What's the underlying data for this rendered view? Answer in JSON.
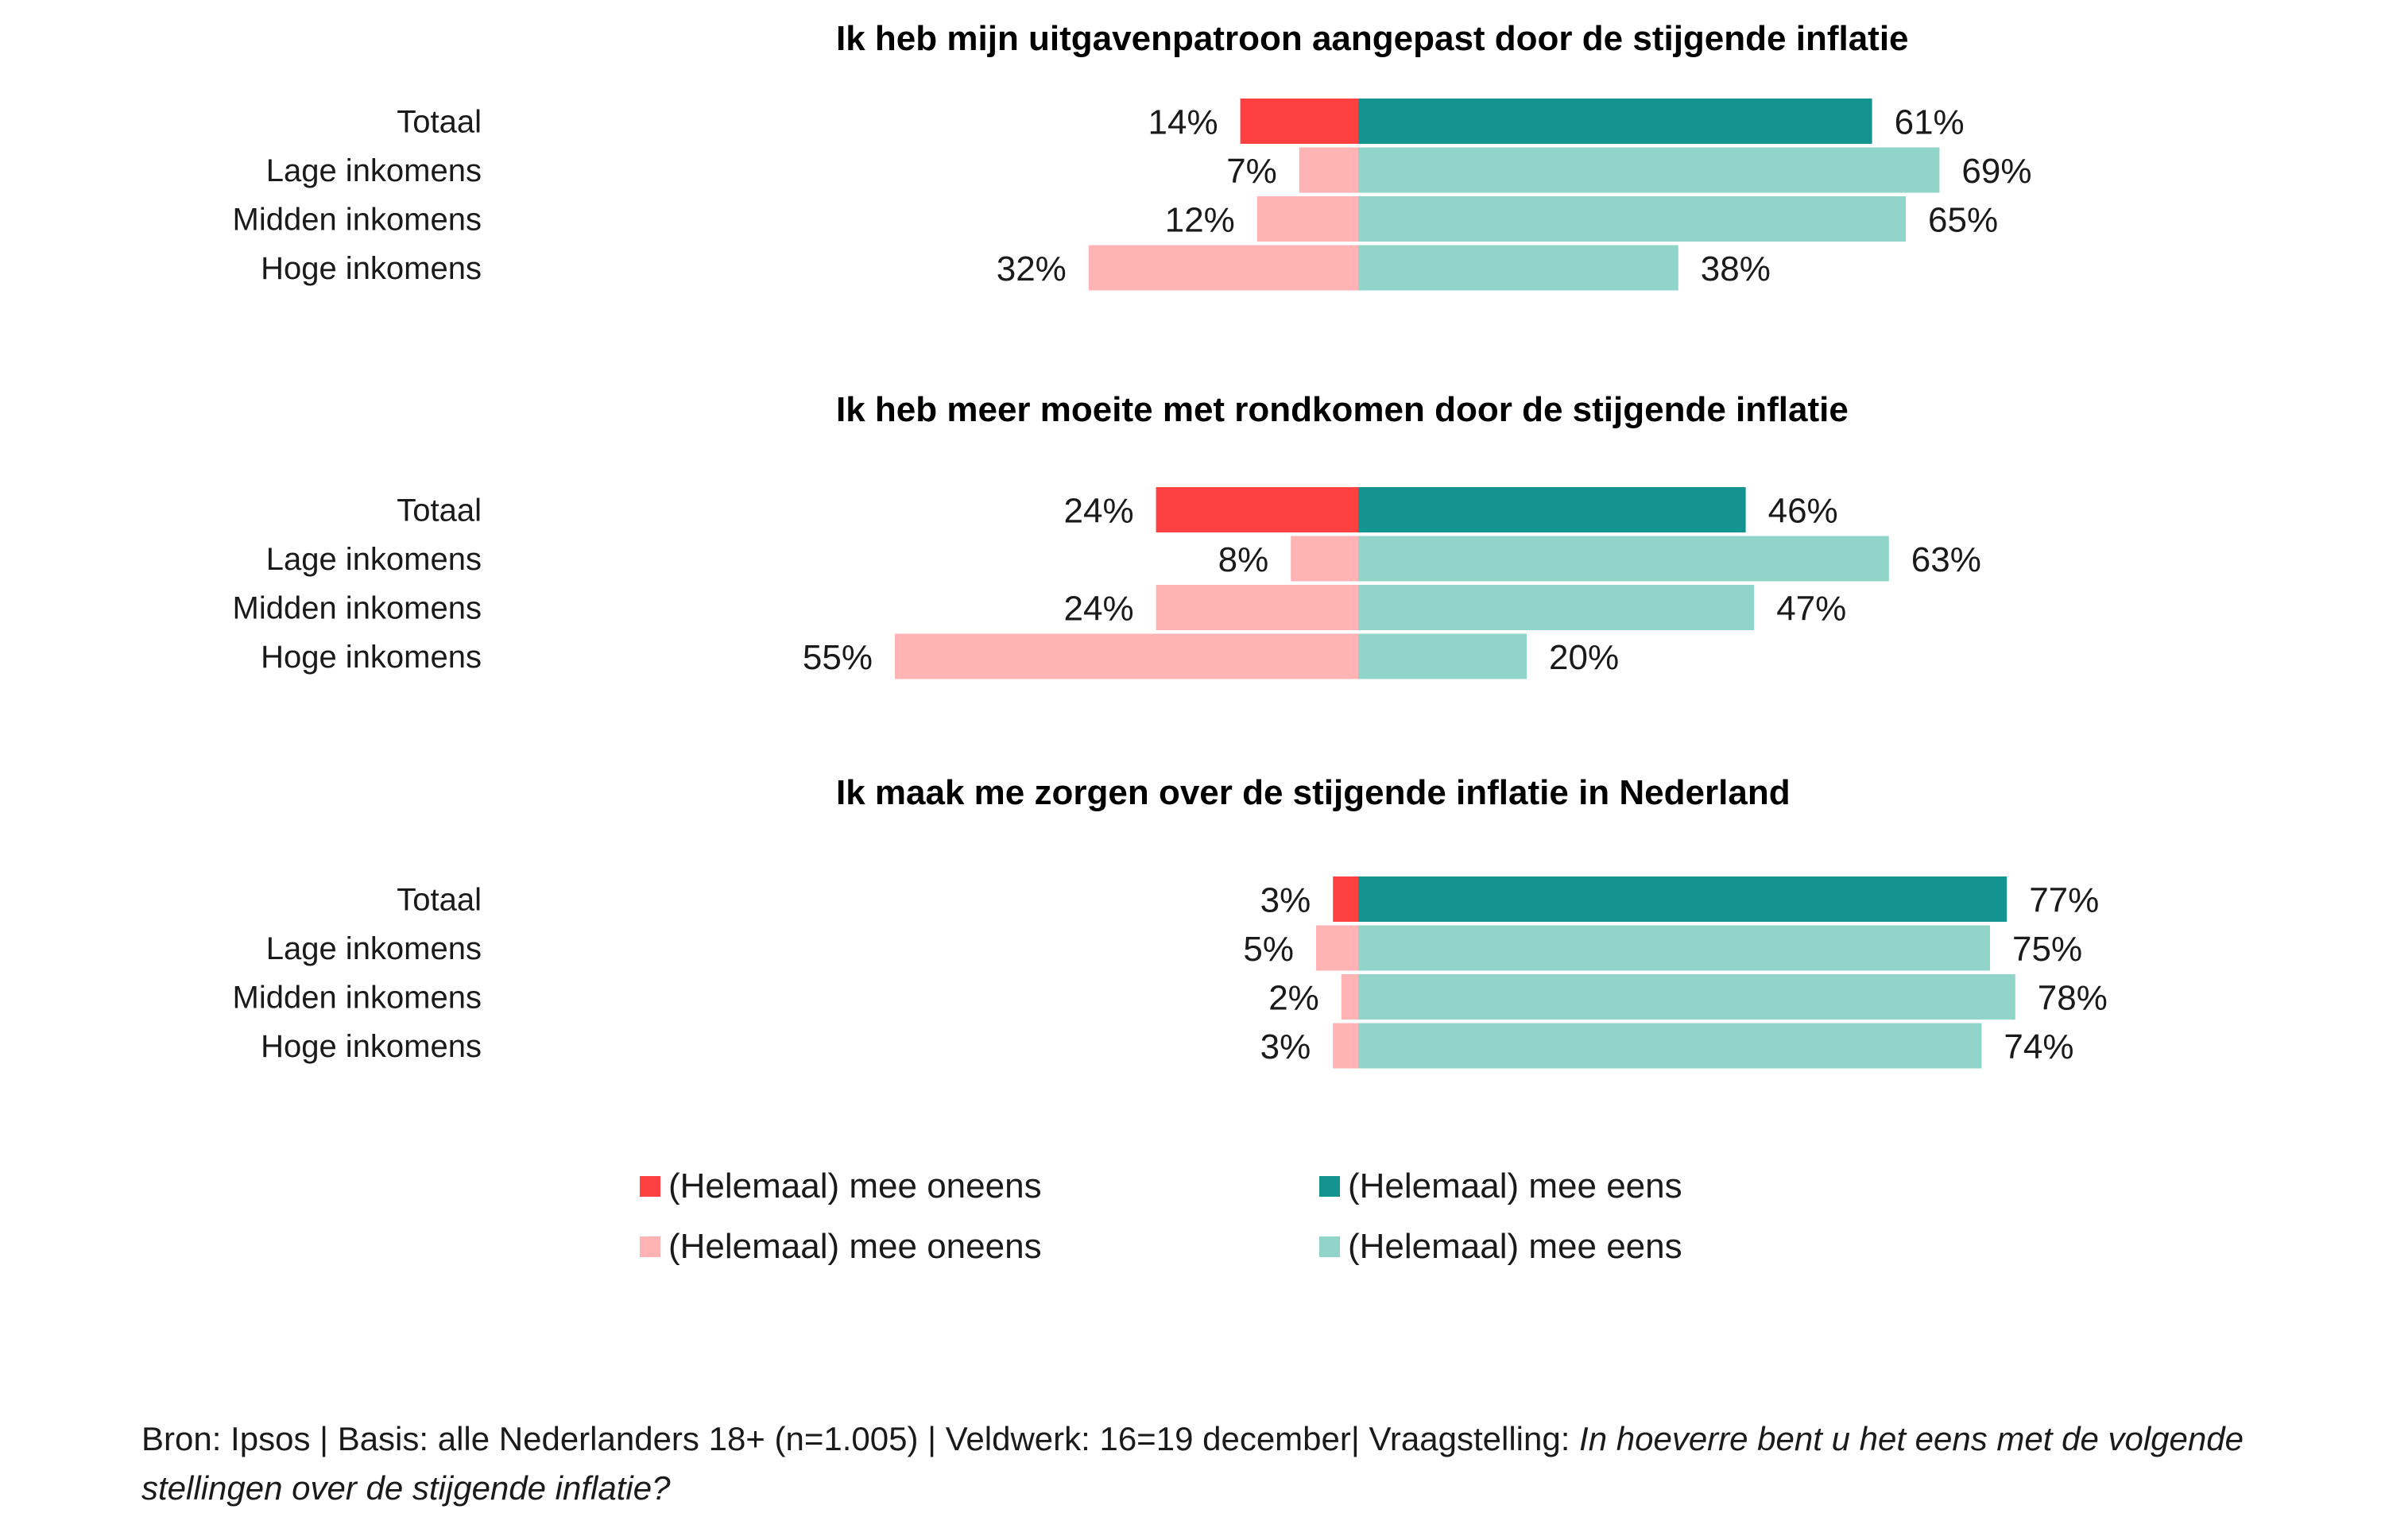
{
  "colors": {
    "disagree_total": "#ff4040",
    "disagree_group": "#ffb3b3",
    "agree_total": "#149490",
    "agree_group": "#90d4ca"
  },
  "chart_data": [
    {
      "type": "bar",
      "orientation": "horizontal-diverging",
      "title": "Ik heb mijn uitgavenpatroon aangepast door de stijgende inflatie",
      "categories": [
        "Totaal",
        "Lage inkomens",
        "Midden inkomens",
        "Hoge inkomens"
      ],
      "series": [
        {
          "name": "(Helemaal) mee oneens",
          "values": [
            14,
            7,
            12,
            32
          ]
        },
        {
          "name": "(Helemaal) mee eens",
          "values": [
            61,
            69,
            65,
            38
          ]
        }
      ]
    },
    {
      "type": "bar",
      "orientation": "horizontal-diverging",
      "title": "Ik heb meer moeite met rondkomen door de stijgende inflatie",
      "categories": [
        "Totaal",
        "Lage inkomens",
        "Midden inkomens",
        "Hoge inkomens"
      ],
      "series": [
        {
          "name": "(Helemaal) mee oneens",
          "values": [
            24,
            8,
            24,
            55
          ]
        },
        {
          "name": "(Helemaal) mee eens",
          "values": [
            46,
            63,
            47,
            20
          ]
        }
      ]
    },
    {
      "type": "bar",
      "orientation": "horizontal-diverging",
      "title": "Ik maak me zorgen over de stijgende inflatie in Nederland",
      "categories": [
        "Totaal",
        "Lage inkomens",
        "Midden inkomens",
        "Hoge inkomens"
      ],
      "series": [
        {
          "name": "(Helemaal) mee oneens",
          "values": [
            3,
            5,
            2,
            3
          ]
        },
        {
          "name": "(Helemaal) mee eens",
          "values": [
            77,
            75,
            78,
            74
          ]
        }
      ]
    }
  ],
  "legend": {
    "disagree_total": "(Helemaal) mee oneens",
    "agree_total": "(Helemaal) mee eens",
    "disagree_group": "(Helemaal) mee oneens",
    "agree_group": "(Helemaal) mee eens"
  },
  "footer": {
    "main": "Bron: Ipsos | Basis: alle Nederlanders 18+ (n=1.005) | Veldwerk: 16=19 december| Vraagstelling: ",
    "question": "In hoeverre bent u het eens met de volgende stellingen over de stijgende inflatie?"
  }
}
